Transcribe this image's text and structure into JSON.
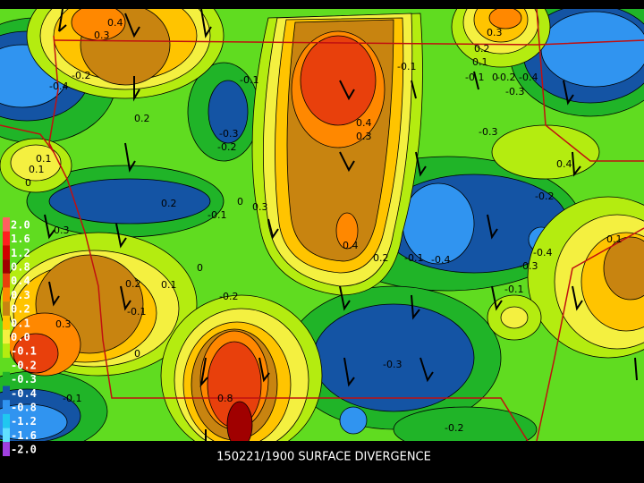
{
  "legend": {
    "levels": [
      {
        "label": "2.0",
        "color": "#ff6060"
      },
      {
        "label": "1.6",
        "color": "#ff2020"
      },
      {
        "label": "1.2",
        "color": "#d00000"
      },
      {
        "label": "0.8",
        "color": "#a00000"
      },
      {
        "label": "0.4",
        "color": "#e8400c"
      },
      {
        "label": "0.3",
        "color": "#ff8800"
      },
      {
        "label": "0.2",
        "color": "#c88410"
      },
      {
        "label": "0.1",
        "color": "#ffc400"
      },
      {
        "label": "0.0",
        "color": "#f4f040"
      },
      {
        "label": "-0.1",
        "color": "#b4ec10"
      },
      {
        "label": "-0.2",
        "color": "#60dc20"
      },
      {
        "label": "-0.3",
        "color": "#20b428"
      },
      {
        "label": "-0.4",
        "color": "#1454a4"
      },
      {
        "label": "-0.8",
        "color": "#3094f0"
      },
      {
        "label": "-1.2",
        "color": "#20c8f0"
      },
      {
        "label": "-1.6",
        "color": "#60e0ff"
      },
      {
        "label": "-2.0",
        "color": "#a040e0"
      }
    ]
  },
  "contour_labels": [
    "0.4",
    "0.3",
    "-0.2",
    "-0.4",
    "0.2",
    "-0.1",
    "-0.3",
    "-0.2",
    "0.4",
    "0.3",
    "-0.1",
    "0.3",
    "0.2",
    "0.1",
    "-0.1",
    "0",
    "-0.2",
    "-0.4",
    "-0.3",
    "0.1",
    "0.1",
    "0",
    "-0.3",
    "0.2",
    "-0.1",
    "0.3",
    "0.4",
    "0",
    "-0.2",
    "0.3",
    "0.4",
    "0.8",
    "-0.3",
    "-0.2",
    "-0.1",
    "0",
    "0.1",
    "-0.4",
    "0.2",
    "0.1",
    "-0.3",
    "0.3",
    "0.2",
    "-0.1",
    "-0.4",
    "-0.1",
    "-0.2",
    "0",
    "-0.1"
  ],
  "caption": "150221/1900 SURFACE DIVERGENCE"
}
